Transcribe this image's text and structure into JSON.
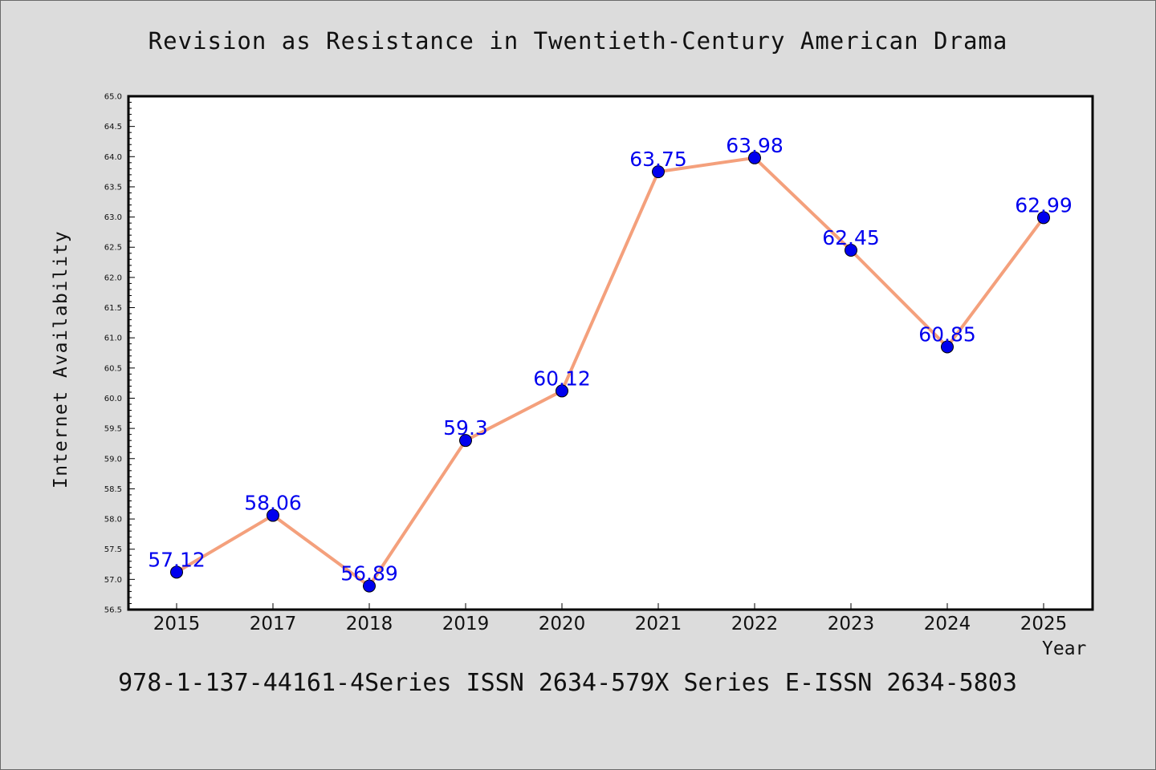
{
  "chart_data": {
    "type": "line",
    "title": "Revision as Resistance in Twentieth-Century American Drama",
    "xlabel": "Year",
    "ylabel": "Internet Availability",
    "categories": [
      "2015",
      "2017",
      "2018",
      "2019",
      "2020",
      "2021",
      "2022",
      "2023",
      "2024",
      "2025"
    ],
    "series": [
      {
        "values": [
          57.12,
          58.06,
          56.89,
          59.3,
          60.12,
          63.75,
          63.98,
          62.45,
          60.85,
          62.99
        ],
        "labels": [
          "57.12",
          "58.06",
          "56.89",
          "59.3",
          "60.12",
          "63.75",
          "63.98",
          "62.45",
          "60.85",
          "62.99"
        ]
      }
    ],
    "ylim": [
      56.5,
      65.0
    ],
    "yticks": [
      "56.5",
      "57.0",
      "57.5",
      "58.0",
      "58.5",
      "59.0",
      "59.5",
      "60.0",
      "60.5",
      "61.0",
      "61.5",
      "62.0",
      "62.5",
      "63.0",
      "63.5",
      "64.0",
      "64.5",
      "65.0"
    ],
    "grid": false,
    "colors": {
      "line": "#f4a07c",
      "marker": "#0000ee",
      "marker_edge": "#000000",
      "data_label": "#0000ee",
      "background": "#dcdcdc",
      "plot_background": "#ffffff"
    }
  },
  "footer": "978-1-137-44161-4Series ISSN 2634-579X Series E-ISSN 2634-5803"
}
